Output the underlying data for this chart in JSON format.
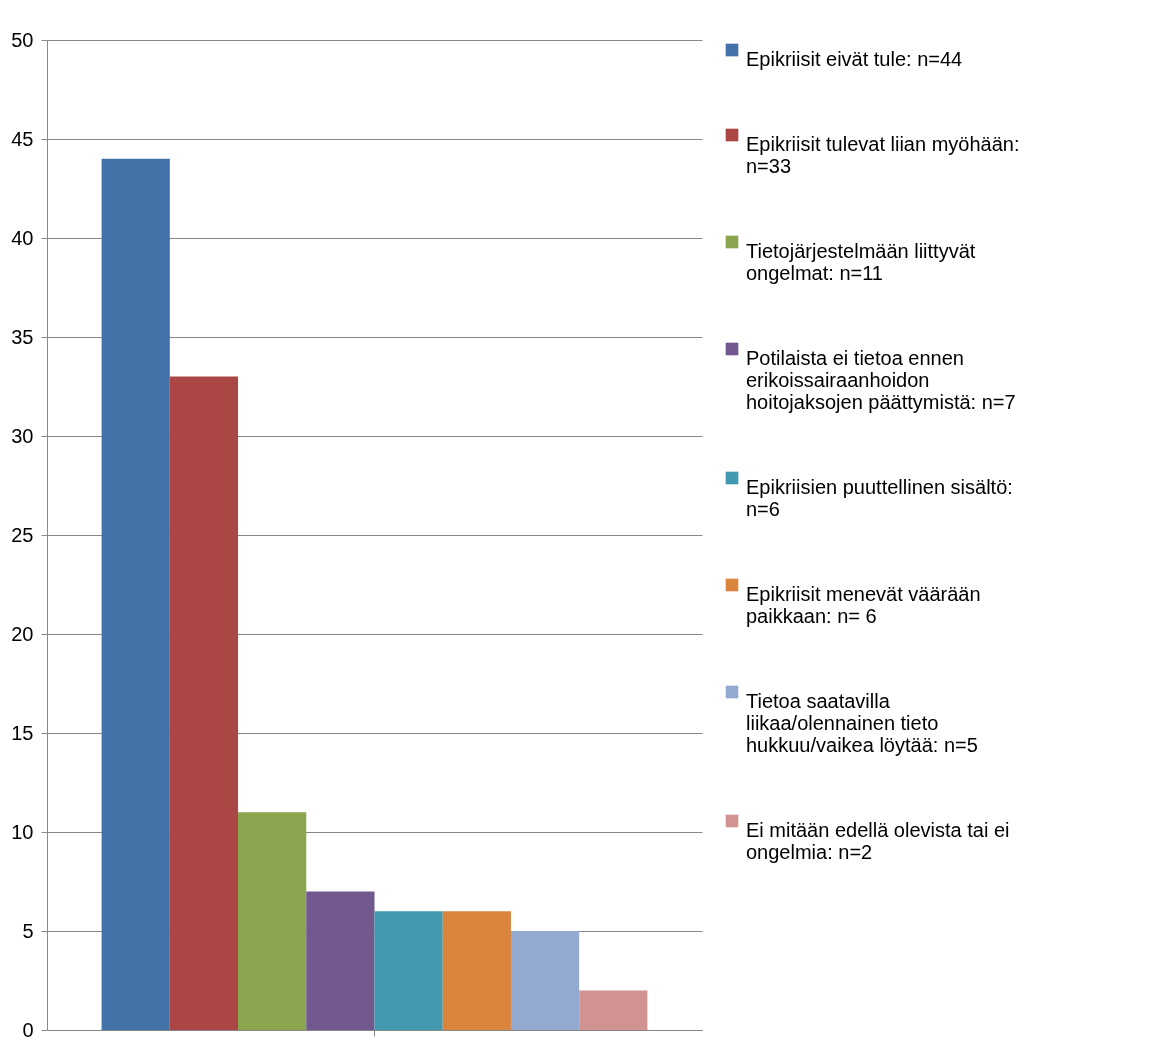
{
  "chart_data": {
    "type": "bar",
    "categories": [
      null
    ],
    "series": [
      {
        "name": "Epikriisit eivät tule: n=44",
        "color": "#4472a8",
        "values": [
          44
        ]
      },
      {
        "name": "Epikriisit tulevat liian myöhään: n=33",
        "color": "#aa4643",
        "values": [
          33
        ]
      },
      {
        "name": "Tietojärjestelmään liittyvät ongelmat: n=11",
        "color": "#89a54e",
        "values": [
          11
        ]
      },
      {
        "name": "Potilaista ei tietoa ennen erikoissairaanhoidon hoitojaksojen päättymistä: n=7",
        "color": "#71588f",
        "values": [
          7
        ]
      },
      {
        "name": "Epikriisien puuttellinen sisältö: n=6",
        "color": "#4198af",
        "values": [
          6
        ]
      },
      {
        "name": "Epikriisit menevät väärään paikkaan: n= 6",
        "color": "#db843d",
        "values": [
          6
        ]
      },
      {
        "name": "Tietoa saatavilla liikaa/olennainen tieto hukkuu/vaikea löytää: n=5",
        "color": "#93a9cf",
        "values": [
          5
        ]
      },
      {
        "name": "Ei mitään edellä olevista tai ei ongelmia: n=2",
        "color": "#d19392",
        "values": [
          2
        ]
      }
    ],
    "ylim": [
      0,
      50
    ],
    "yticks": [
      0,
      5,
      10,
      15,
      20,
      25,
      30,
      35,
      40,
      45,
      50
    ],
    "grid": "y",
    "legend": "right"
  }
}
